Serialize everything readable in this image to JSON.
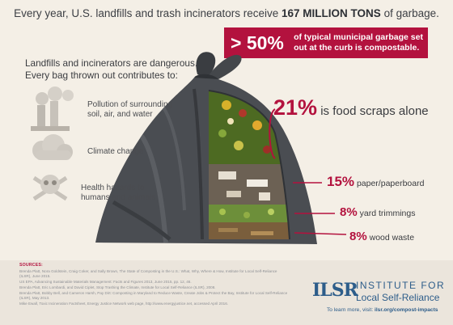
{
  "headline": {
    "prefix": "Every year, U.S. landfills and trash incinerators receive",
    "emphasis": "167 MILLION TONS",
    "suffix": "of garbage."
  },
  "banner": {
    "value": "> 50%",
    "text": "of typical municipal garbage set out at the curb is compostable."
  },
  "lead": {
    "line1": "Landfills and incinerators are dangerous.",
    "line2": "Every bag thrown out contributes to:"
  },
  "hazards": [
    {
      "icon": "smokestack-icon",
      "line1": "Pollution of surrounding",
      "line2": "soil, air, and water"
    },
    {
      "icon": "cloud-icon",
      "line1": "Climate change",
      "line2": ""
    },
    {
      "icon": "skull-crossbones-icon",
      "line1": "Health hazards to",
      "line2": "humans and animals"
    }
  ],
  "stats": {
    "food": {
      "pct": "21%",
      "label": "is food scraps alone"
    },
    "paper": {
      "pct": "15%",
      "label": "paper/paperboard"
    },
    "yard": {
      "pct": "8%",
      "label": "yard trimmings"
    },
    "wood": {
      "pct": "8%",
      "label": "wood waste"
    }
  },
  "sources": {
    "title": "SOURCES:",
    "lines": [
      "Brenda Platt, Nora Goldstein, Craig Coker, and Sally Brown, The State of Composting in the U.S.: What, Why, Where & How, Institute for Local Self-Reliance",
      "(ILSR), June 2015.",
      "US EPA, Advancing Sustainable Materials Management: Facts and Figures 2013, June 2015, pp. 12, 46.",
      "Brenda Platt, Eric Lombardi, and David Ciplet, Stop Trashing the Climate, Institute for Local Self-Reliance (ILSR), 2008.",
      "Brenda Platt, Bobby Bell, and Cameron Harsh, Pay Dirt: Composting in Maryland to Reduce Waste, Create Jobs & Protect the Bay, Institute for Local Self-Reliance",
      "(ILSR), May 2013.",
      "Mike Ewall, Toxic Incineration Factsheet, Energy Justice Network web page, http://www.energyjustice.net, accessed April 2016."
    ]
  },
  "org": {
    "logo": "ILSR",
    "name_line1": "INSTITUTE FOR",
    "name_line2": "Local Self-Reliance",
    "learn_prefix": "To learn more, visit:",
    "learn_url": "ilsr.org/compost-impacts"
  },
  "colors": {
    "accent": "#b3123e",
    "background": "#f4efe6",
    "bag": "#44474b",
    "org_blue": "#2d5d8a"
  }
}
